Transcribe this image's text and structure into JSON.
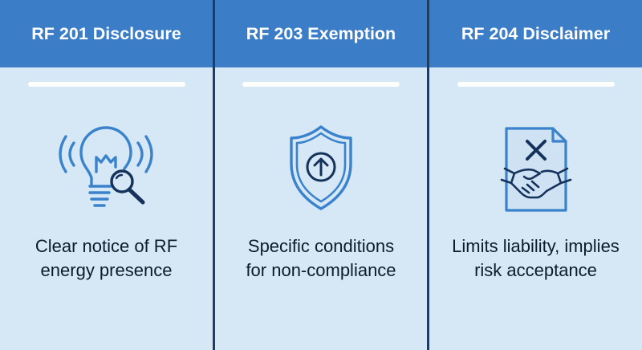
{
  "colors": {
    "header_bg": "#3b7dc7",
    "panel_bg": "#d6e7f6",
    "divider": "#1e3d66",
    "icon_stroke": "#3a82cc",
    "icon_dark": "#14325a"
  },
  "columns": [
    {
      "title": "RF 201 Disclosure",
      "icon": "lightbulb-magnifier-icon",
      "desc_line1": "Clear notice of RF",
      "desc_line2": "energy presence"
    },
    {
      "title": "RF 203 Exemption",
      "icon": "shield-up-arrow-icon",
      "desc_line1": "Specific conditions",
      "desc_line2": "for non-compliance"
    },
    {
      "title": "RF 204 Disclaimer",
      "icon": "document-handshake-icon",
      "desc_line1": "Limits liability, implies",
      "desc_line2": "risk acceptance"
    }
  ]
}
